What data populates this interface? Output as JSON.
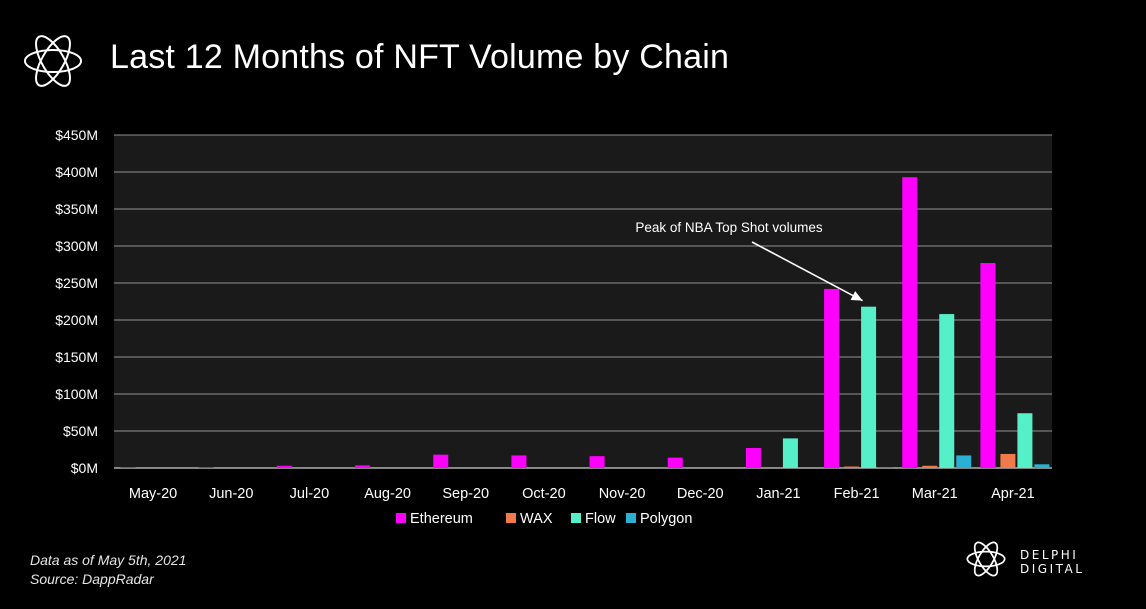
{
  "title": "Last 12 Months of NFT Volume by Chain",
  "footnote": {
    "line1": "Data as of May 5th, 2021",
    "line2": "Source: DappRadar"
  },
  "brand": {
    "name": "DELPHI DIGITAL"
  },
  "chart_data": {
    "type": "bar",
    "categories": [
      "May-20",
      "Jun-20",
      "Jul-20",
      "Aug-20",
      "Sep-20",
      "Oct-20",
      "Nov-20",
      "Dec-20",
      "Jan-21",
      "Feb-21",
      "Mar-21",
      "Apr-21"
    ],
    "series": [
      {
        "name": "Ethereum",
        "color": "#ff00ff",
        "values": [
          0.5,
          1,
          3,
          3.5,
          18,
          17,
          16,
          14,
          27,
          242,
          393,
          277
        ]
      },
      {
        "name": "WAX",
        "color": "#f07a4a",
        "values": [
          0,
          0,
          0,
          0,
          0,
          0,
          0,
          0,
          0,
          2,
          3,
          19
        ]
      },
      {
        "name": "Flow",
        "color": "#55f0c8",
        "values": [
          0,
          0,
          0,
          0,
          0,
          0,
          0,
          0,
          40,
          218,
          208,
          74
        ]
      },
      {
        "name": "Polygon",
        "color": "#2ab0d0",
        "values": [
          0,
          0,
          0,
          0,
          0,
          0,
          0,
          0,
          0,
          1,
          17,
          5
        ]
      }
    ],
    "ylim": [
      0,
      450
    ],
    "yticks": [
      "$0M",
      "$50M",
      "$100M",
      "$150M",
      "$200M",
      "$250M",
      "$300M",
      "$350M",
      "$400M",
      "$450M"
    ],
    "grid": true,
    "legend": "bottom",
    "annotation": {
      "text": "Peak of NBA Top Shot volumes",
      "category": "Feb-21",
      "series": "Flow"
    }
  }
}
